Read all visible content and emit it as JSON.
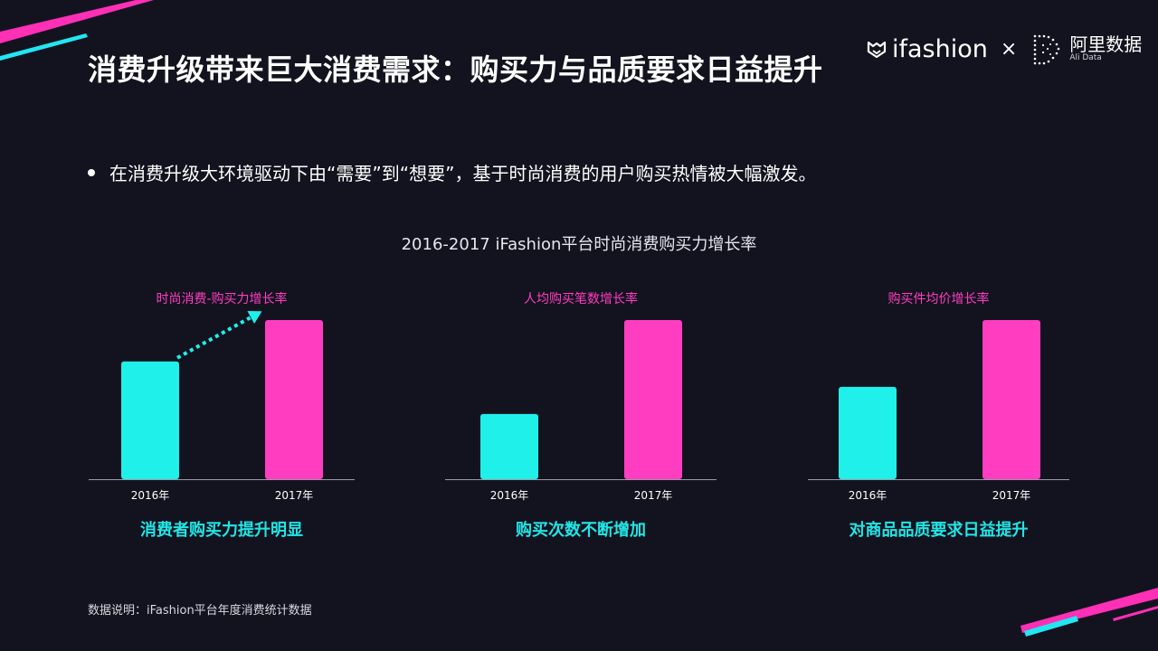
{
  "header": {
    "title": "消费升级带来巨大消费需求：购买力与品质要求日益提升",
    "brand_name": "ifashion",
    "brand_separator": "×",
    "partner_cn": "阿里数据",
    "partner_en": "Ali Data"
  },
  "bullet_text": "在消费升级大环境驱动下由“需要”到“想要”，基于时尚消费的用户购买热情被大幅激发。",
  "footnote": "数据说明：iFashion平台年度消费统计数据",
  "colors": {
    "background": "#13131f",
    "bar_2016": "#1ff0ea",
    "bar_2017": "#ff3dc1",
    "panel_label": "#ff3dc1",
    "caption": "#22e6e6",
    "axis": "#9a9aa8",
    "accent_cyan": "#22e6f0",
    "accent_pink": "#ff2fb6"
  },
  "chart_data": {
    "title": "2016-2017 iFashion平台时尚消费购买力增长率",
    "charts": [
      {
        "type": "bar",
        "label": "时尚消费-购买力增长率",
        "categories": [
          "2016年",
          "2017年"
        ],
        "values": [
          0.74,
          1.0
        ],
        "caption": "消费者购买力提升明显",
        "has_trend_arrow": true
      },
      {
        "type": "bar",
        "label": "人均购买笔数增长率",
        "categories": [
          "2016年",
          "2017年"
        ],
        "values": [
          0.41,
          1.0
        ],
        "caption": "购买次数不断增加",
        "has_trend_arrow": false
      },
      {
        "type": "bar",
        "label": "购买件均价增长率",
        "categories": [
          "2016年",
          "2017年"
        ],
        "values": [
          0.58,
          1.0
        ],
        "caption": "对商品品质要求日益提升",
        "has_trend_arrow": false
      }
    ]
  }
}
